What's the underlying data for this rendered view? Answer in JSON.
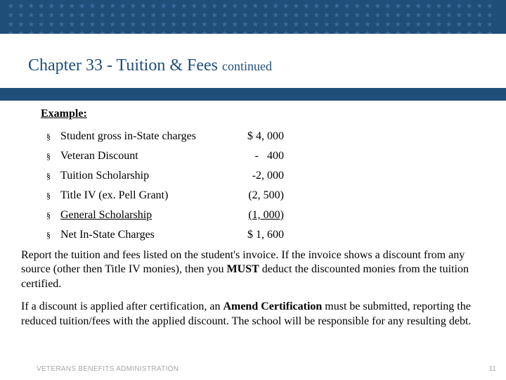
{
  "colors": {
    "band": "#1f4e79",
    "star": "#3a6a99",
    "title": "#1f4e79",
    "footer": "#a6a6a6",
    "background": "#ffffff",
    "text": "#000000"
  },
  "typography": {
    "title_fontsize": 24,
    "continued_fontsize": 18,
    "body_fontsize": 16,
    "footer_fontsize": 10
  },
  "header": {
    "star_rows": 4,
    "stars_per_row": 48,
    "star_glyph": "★"
  },
  "title": {
    "main": "Chapter 33 - Tuition & Fees ",
    "continued": "continued"
  },
  "example_label": "Example:",
  "bullet_glyph": "§",
  "items": [
    {
      "label": "Student gross in-State charges",
      "value": "$ 4, 000",
      "label_underline": false,
      "value_underline": false
    },
    {
      "label": "Veteran Discount",
      "value": "-   400",
      "label_underline": false,
      "value_underline": false
    },
    {
      "label": "Tuition Scholarship",
      "value": "-2, 000",
      "label_underline": false,
      "value_underline": false
    },
    {
      "label": "Title IV (ex. Pell Grant)",
      "value": "(2, 500)",
      "label_underline": false,
      "value_underline": false
    },
    {
      "label": "General Scholarship",
      "value": "(1, 000)",
      "label_underline": true,
      "value_underline": true
    },
    {
      "label": "Net In-State Charges",
      "value": "$ 1, 600",
      "label_underline": false,
      "value_underline": false
    }
  ],
  "paragraphs": {
    "p1_a": "Report the tuition and fees listed on the student's invoice.  If the invoice shows a discount from any source (other then Title IV monies), then you ",
    "p1_bold": "MUST",
    "p1_b": " deduct the discounted monies from the tuition certified.",
    "p2_a": "If a discount is applied after certification, an ",
    "p2_bold": "Amend Certification",
    "p2_b": " must be submitted, reporting the reduced tuition/fees with the applied discount.  The school will be responsible for any resulting debt."
  },
  "footer": {
    "org": "VETERANS BENEFITS ADMINISTRATION",
    "page": "11"
  }
}
